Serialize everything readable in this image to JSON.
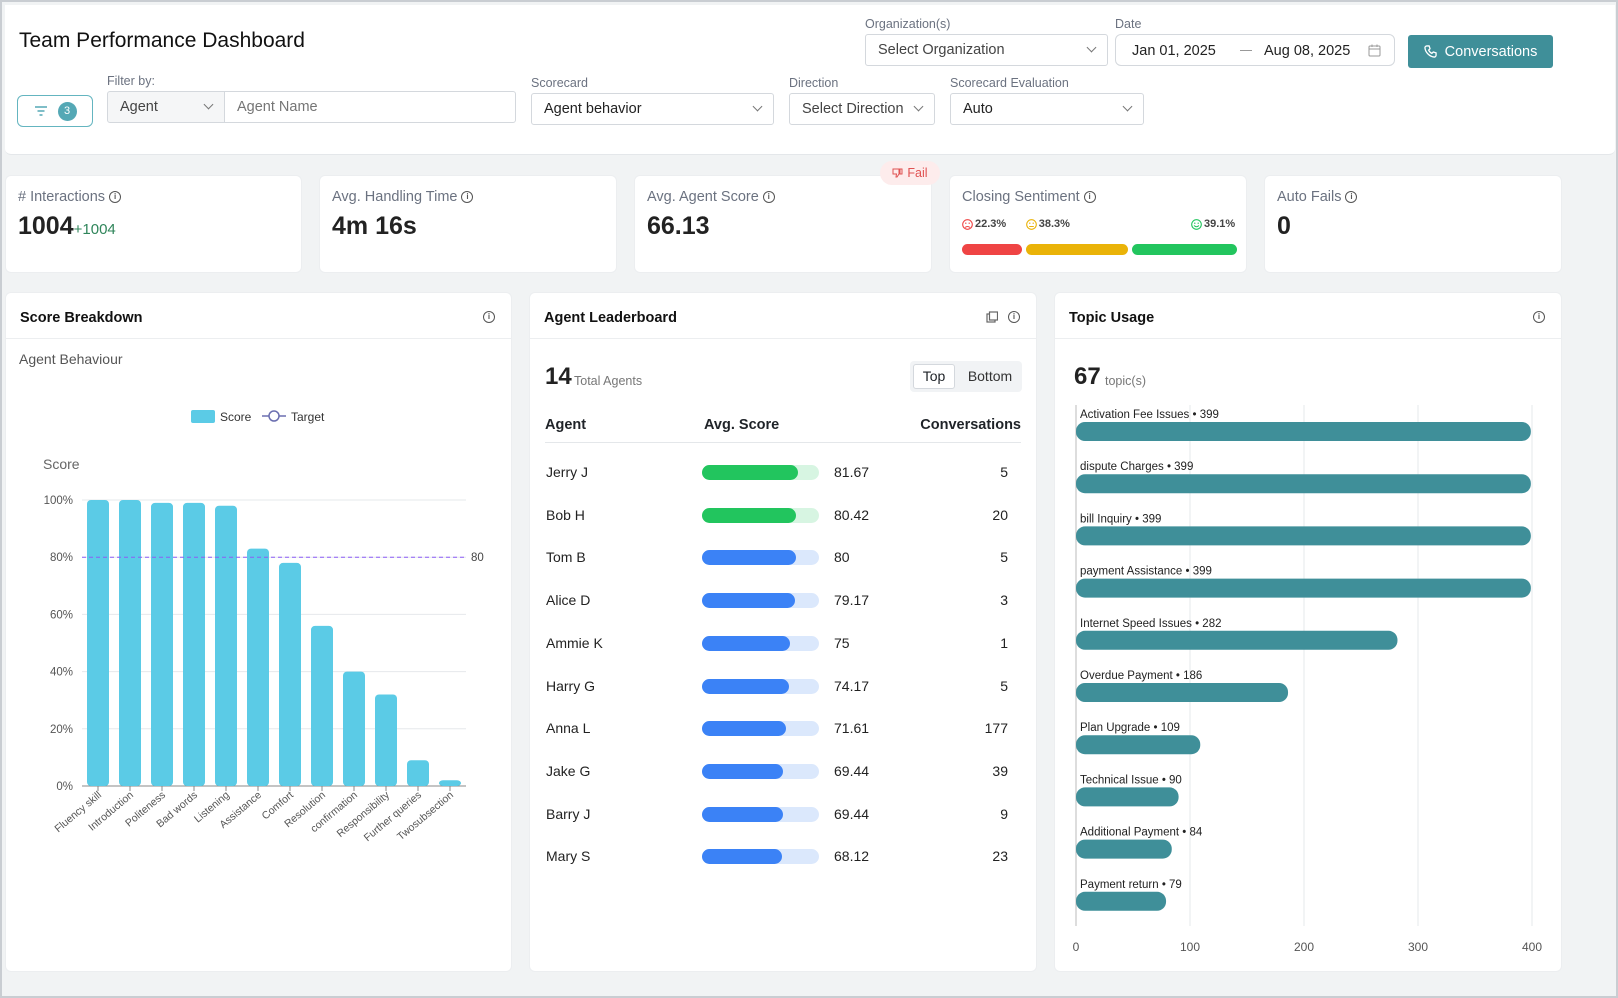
{
  "header": {
    "title": "Team Performance Dashboard",
    "org_label": "Organization(s)",
    "org_placeholder": "Select Organization",
    "date_label": "Date",
    "date_start": "Jan 01, 2025",
    "date_end": "Aug 08, 2025",
    "conversations_button": "Conversations",
    "filter_count": "3",
    "filter_by_label": "Filter by:",
    "filter_type": "Agent",
    "agent_name_placeholder": "Agent Name",
    "scorecard_label": "Scorecard",
    "scorecard_value": "Agent behavior",
    "direction_label": "Direction",
    "direction_placeholder": "Select Direction",
    "eval_label": "Scorecard Evaluation",
    "eval_value": "Auto"
  },
  "kpis": {
    "interactions_label": "# Interactions",
    "interactions_value": "1004",
    "interactions_delta": "+1004",
    "aht_label": "Avg. Handling Time",
    "aht_value": "4m 16s",
    "score_label": "Avg. Agent Score",
    "score_value": "66.13",
    "fail_badge": "Fail",
    "sentiment_label": "Closing Sentiment",
    "sentiment": [
      {
        "label": "22.3%",
        "value": 22.3,
        "color": "#ef4444",
        "icon": "sad-face-icon"
      },
      {
        "label": "38.3%",
        "value": 38.3,
        "color": "#eab308",
        "icon": "neutral-face-icon"
      },
      {
        "label": "39.1%",
        "value": 39.1,
        "color": "#22c55e",
        "icon": "happy-face-icon"
      }
    ],
    "autofails_label": "Auto Fails",
    "autofails_value": "0"
  },
  "score_breakdown": {
    "title": "Score Breakdown",
    "subtitle": "Agent Behaviour"
  },
  "chart_data": [
    {
      "type": "bar",
      "title": "Agent Behaviour",
      "ylabel": "Score",
      "ylim": [
        0,
        100
      ],
      "yticks": [
        "0%",
        "20%",
        "40%",
        "60%",
        "80%",
        "100%"
      ],
      "legend": [
        "Score",
        "Target"
      ],
      "legend_position": "top",
      "target": 80,
      "target_label": "80",
      "color": "#5bcbe6",
      "categories": [
        "Fluency skill",
        "Introduction",
        "Politeness",
        "Bad words",
        "Listening",
        "Assistance",
        "Comfort",
        "Resolution",
        "confirmation",
        "Responsibility",
        "Further queries",
        "Twosubsection"
      ],
      "values": [
        100,
        100,
        99,
        99,
        98,
        83,
        78,
        56,
        40,
        32,
        9,
        2
      ]
    },
    {
      "type": "bar",
      "title": "Topic Usage",
      "orientation": "horizontal",
      "xlim": [
        0,
        400
      ],
      "xticks": [
        "0",
        "100",
        "200",
        "300",
        "400"
      ],
      "color": "#3f8f99",
      "categories": [
        "Activation Fee Issues",
        "dispute Charges",
        "bill Inquiry",
        "payment Assistance",
        "Internet Speed Issues",
        "Overdue Payment",
        "Plan Upgrade",
        "Technical Issue",
        "Additional Payment",
        "Payment return"
      ],
      "values": [
        399,
        399,
        399,
        399,
        282,
        186,
        109,
        90,
        84,
        79
      ]
    }
  ],
  "leaderboard": {
    "title": "Agent Leaderboard",
    "total": "14",
    "total_label": "Total Agents",
    "tab_top": "Top",
    "tab_bottom": "Bottom",
    "col_agent": "Agent",
    "col_score": "Avg. Score",
    "col_conv": "Conversations",
    "rows": [
      {
        "name": "Jerry J",
        "score": "81.67",
        "conv": "5",
        "pct": 81.67,
        "color": "#22c55e",
        "bg": "#d7f5e2"
      },
      {
        "name": "Bob H",
        "score": "80.42",
        "conv": "20",
        "pct": 80.42,
        "color": "#22c55e",
        "bg": "#d7f5e2"
      },
      {
        "name": "Tom B",
        "score": "80",
        "conv": "5",
        "pct": 80,
        "color": "#3b82f6",
        "bg": "#dbe8fc"
      },
      {
        "name": "Alice D",
        "score": "79.17",
        "conv": "3",
        "pct": 79.17,
        "color": "#3b82f6",
        "bg": "#dbe8fc"
      },
      {
        "name": "Ammie K",
        "score": "75",
        "conv": "1",
        "pct": 75,
        "color": "#3b82f6",
        "bg": "#dbe8fc"
      },
      {
        "name": "Harry G",
        "score": "74.17",
        "conv": "5",
        "pct": 74.17,
        "color": "#3b82f6",
        "bg": "#dbe8fc"
      },
      {
        "name": "Anna L",
        "score": "71.61",
        "conv": "177",
        "pct": 71.61,
        "color": "#3b82f6",
        "bg": "#dbe8fc"
      },
      {
        "name": "Jake G",
        "score": "69.44",
        "conv": "39",
        "pct": 69.44,
        "color": "#3b82f6",
        "bg": "#dbe8fc"
      },
      {
        "name": "Barry J",
        "score": "69.44",
        "conv": "9",
        "pct": 69.44,
        "color": "#3b82f6",
        "bg": "#dbe8fc"
      },
      {
        "name": "Mary S",
        "score": "68.12",
        "conv": "23",
        "pct": 68.12,
        "color": "#3b82f6",
        "bg": "#dbe8fc"
      }
    ]
  },
  "topic_usage": {
    "title": "Topic Usage",
    "count": "67",
    "count_label": "topic(s)"
  }
}
